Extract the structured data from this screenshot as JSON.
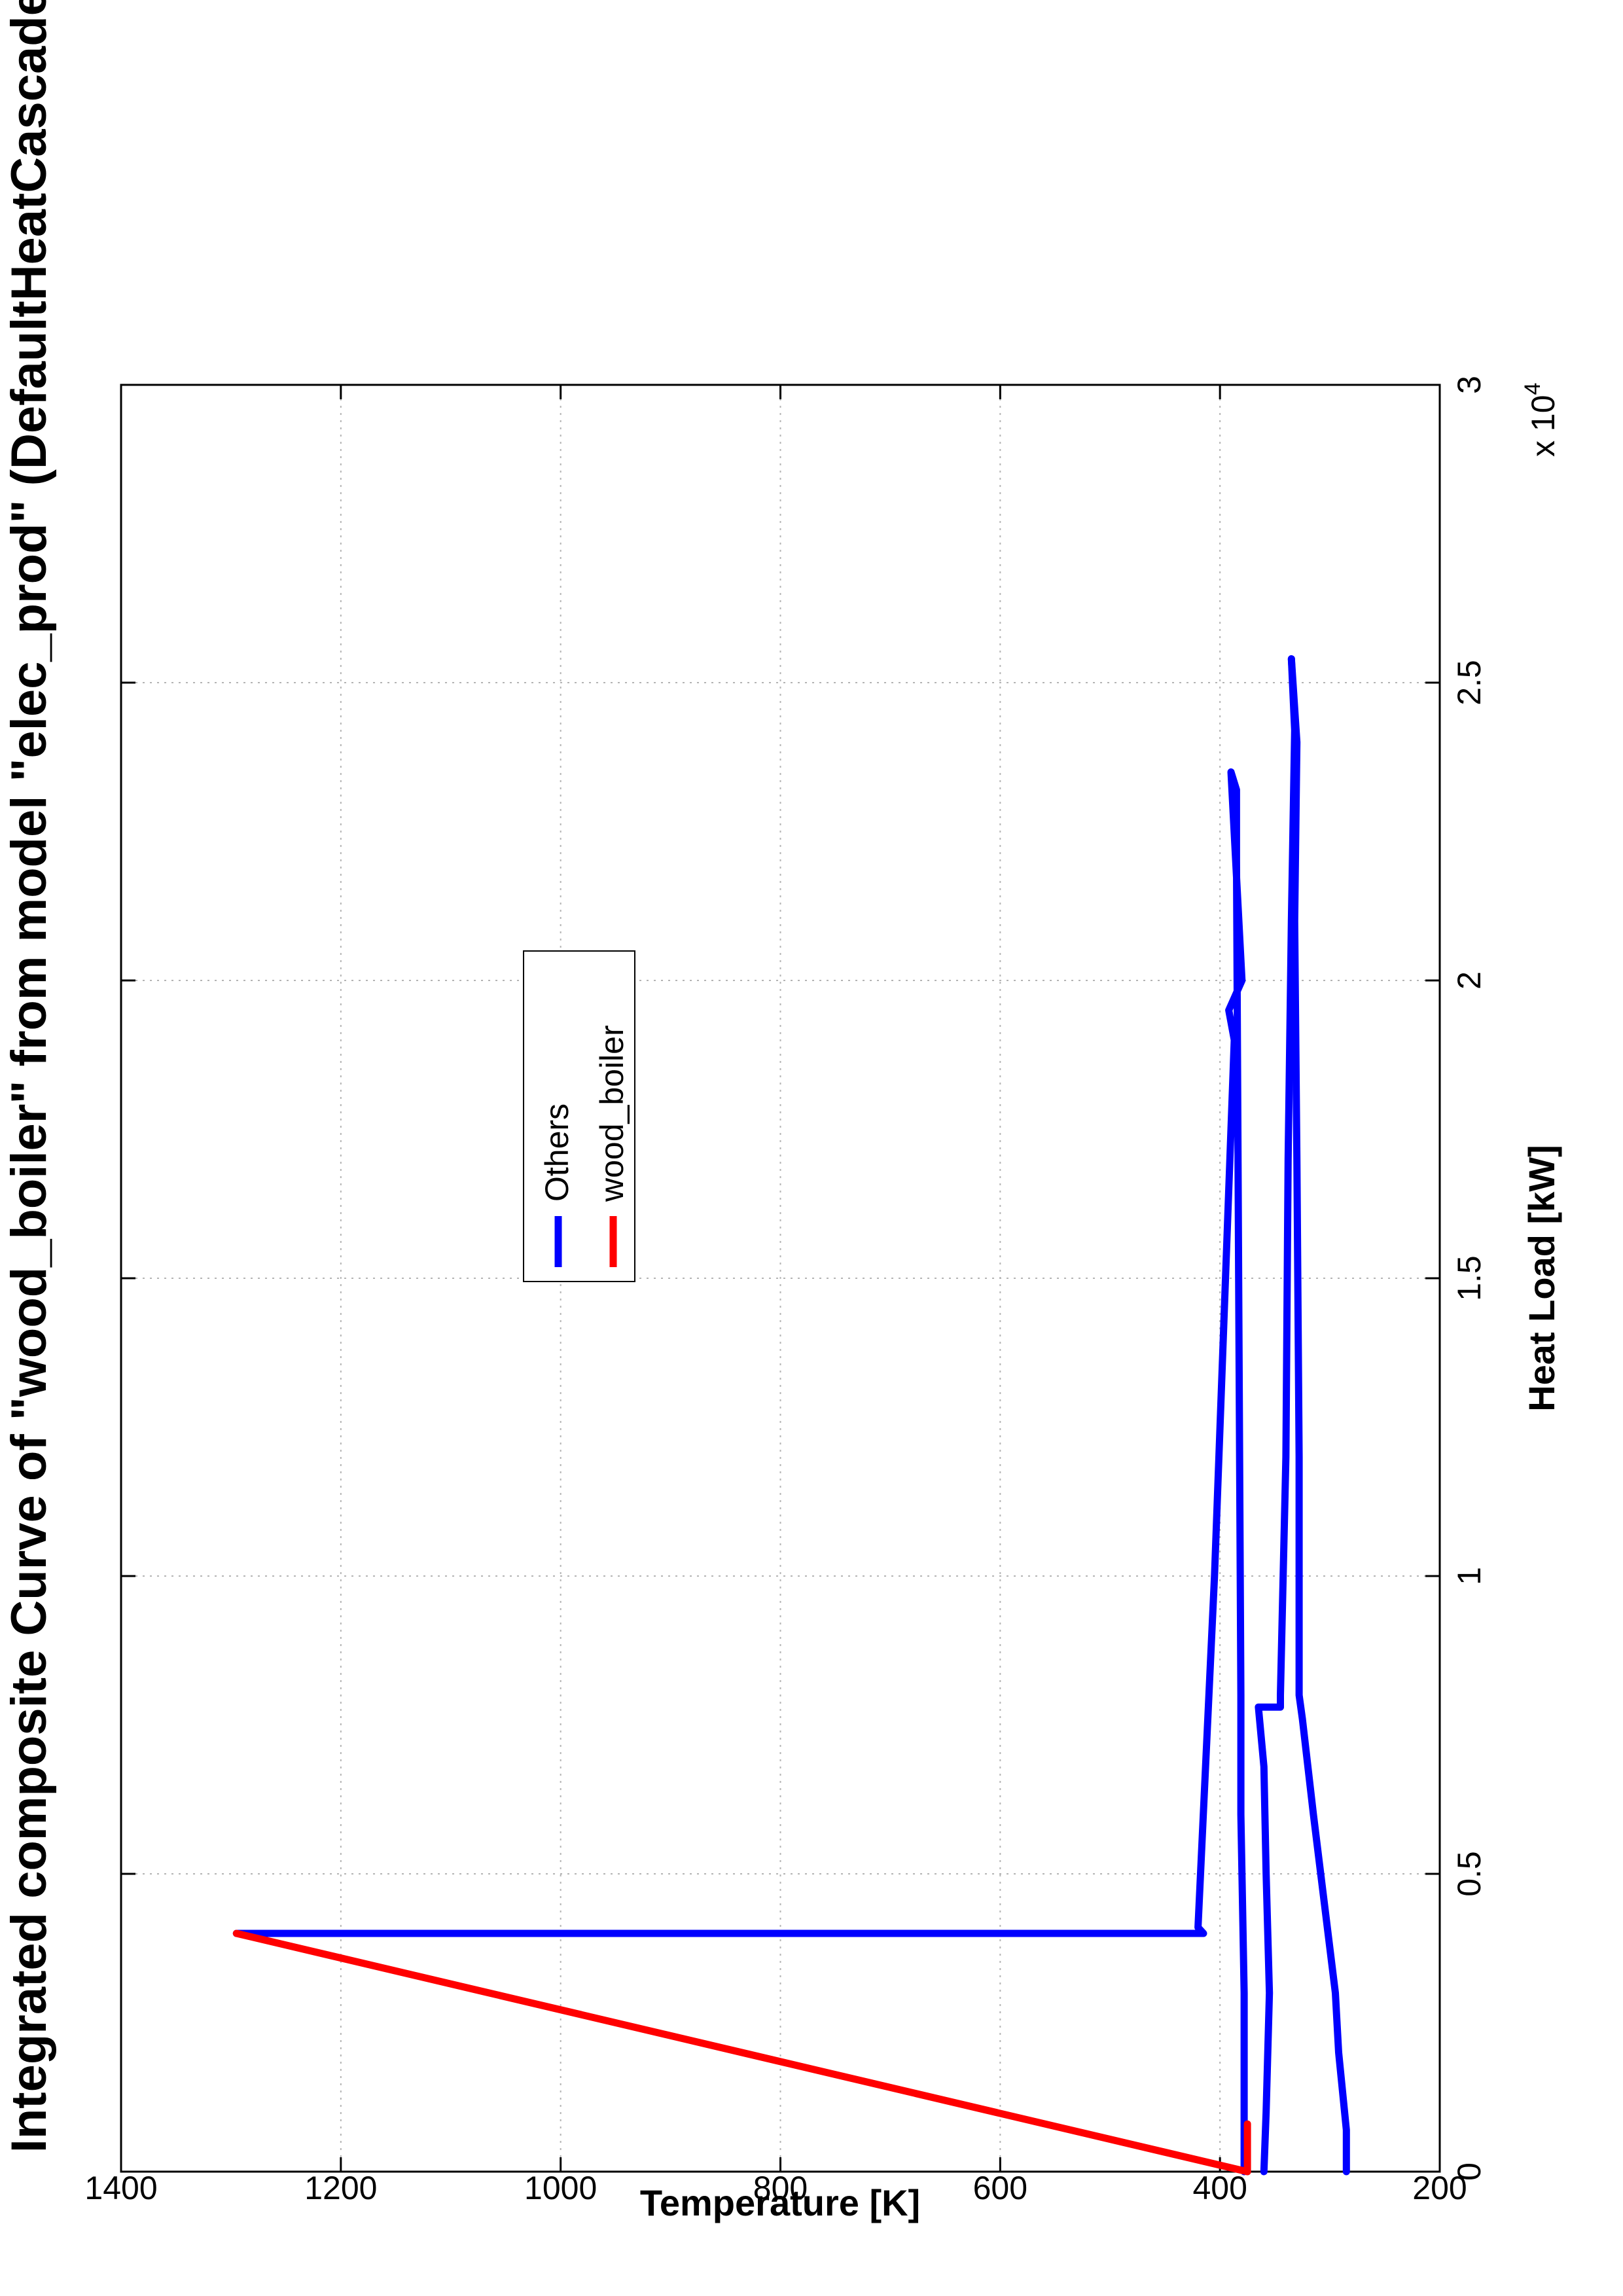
{
  "chart_data": {
    "type": "line",
    "title": "Integrated composite Curve of \"wood_boiler\" from model \"elec_prod\" (DefaultHeatCascade)",
    "xlabel": "Heat Load [kW]",
    "ylabel": "Temperature [K]",
    "x_multiplier": "x 10",
    "x_multiplier_exp": "4",
    "xlim": [
      0,
      3
    ],
    "ylim": [
      200,
      1400
    ],
    "xticks": [
      {
        "value": 0,
        "label": "0"
      },
      {
        "value": 0.5,
        "label": "0.5"
      },
      {
        "value": 1,
        "label": "1"
      },
      {
        "value": 1.5,
        "label": "1.5"
      },
      {
        "value": 2,
        "label": "2"
      },
      {
        "value": 2.5,
        "label": "2.5"
      },
      {
        "value": 3,
        "label": "3"
      }
    ],
    "yticks": [
      {
        "value": 200,
        "label": "200"
      },
      {
        "value": 400,
        "label": "400"
      },
      {
        "value": 600,
        "label": "600"
      },
      {
        "value": 800,
        "label": "800"
      },
      {
        "value": 1000,
        "label": "1000"
      },
      {
        "value": 1200,
        "label": "1200"
      },
      {
        "value": 1400,
        "label": "1400"
      }
    ],
    "grid": true,
    "legend_position": "upper-middle",
    "series": [
      {
        "name": "Others",
        "color": "#0000ff",
        "x": [
          0.4,
          0.4,
          0.41,
          1.0,
          1.5,
          1.9,
          1.95,
          2.0,
          2.35,
          2.32,
          2.2,
          1.5,
          0.8,
          0.6,
          0.3,
          0.0
        ],
        "y": [
          1295,
          415,
          420,
          405,
          395,
          387,
          392,
          380,
          390,
          385,
          385,
          383,
          381,
          381,
          378,
          378
        ]
      },
      {
        "name": "Others",
        "color": "#0000ff",
        "x": [
          2.54,
          2.42,
          2.1,
          1.7,
          1.2,
          0.8,
          0.8,
          0.78,
          0.78,
          0.68,
          0.5,
          0.3,
          0.1,
          0.0
        ],
        "y": [
          335,
          332,
          335,
          338,
          340,
          345,
          345,
          345,
          365,
          360,
          358,
          355,
          358,
          360
        ]
      },
      {
        "name": "Others",
        "color": "#0000ff",
        "x": [
          2.54,
          2.4,
          2.1,
          1.7,
          1.2,
          0.8,
          0.76,
          0.6,
          0.45,
          0.3,
          0.2,
          0.07,
          0.0
        ],
        "y": [
          335,
          330,
          332,
          330,
          328,
          328,
          325,
          315,
          305,
          295,
          292,
          285,
          285
        ]
      },
      {
        "name": "wood_boiler",
        "color": "#ff0000",
        "x": [
          0.4,
          0.0
        ],
        "y": [
          1295,
          375
        ]
      },
      {
        "name": "wood_boiler",
        "color": "#ff0000",
        "x": [
          0.0,
          0.0,
          0.08
        ],
        "y": [
          375,
          375,
          375
        ]
      }
    ],
    "legend": [
      {
        "label": "Others",
        "color": "#0000ff"
      },
      {
        "label": "wood_boiler",
        "color": "#ff0000"
      }
    ]
  }
}
